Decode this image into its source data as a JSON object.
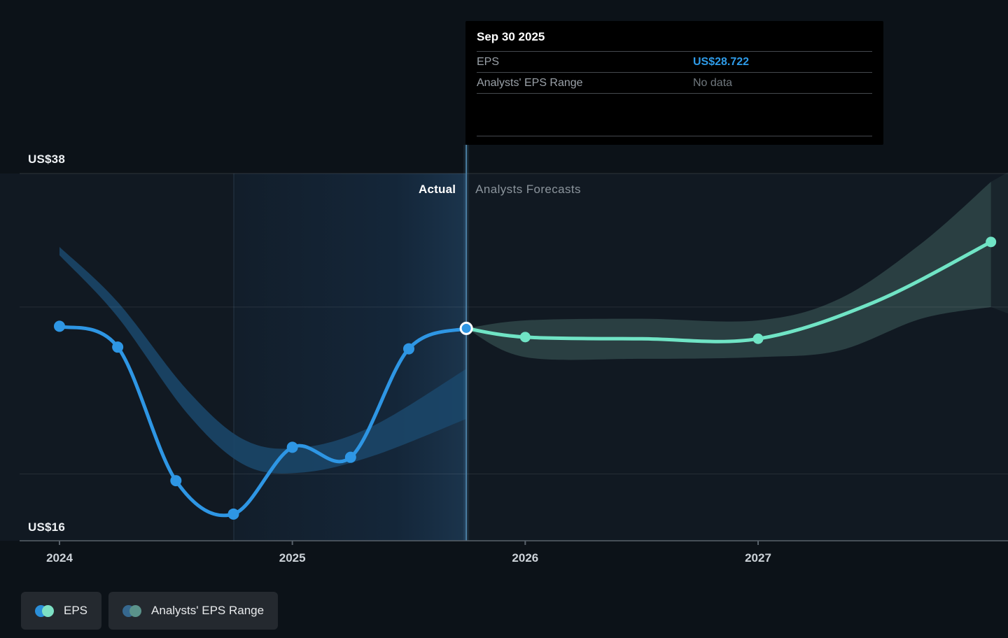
{
  "tooltip": {
    "title": "Sep 30 2025",
    "rows": [
      {
        "label": "EPS",
        "value": "US$28.722",
        "style": "accent"
      },
      {
        "label": "Analysts' EPS Range",
        "value": "No data",
        "style": "muted"
      }
    ]
  },
  "legend": [
    {
      "label": "EPS",
      "colors": [
        "#2b8fd9",
        "#7de0c4"
      ]
    },
    {
      "label": "Analysts' EPS Range",
      "colors": [
        "#36688f",
        "#5b938b"
      ]
    }
  ],
  "colors": {
    "eps_line": "#2e96e4",
    "forecast_line": "#70e4c5",
    "actual_band": "#1b4668",
    "forecast_band": "#41615f",
    "divider": "#4c80a4",
    "axis": "#59626b",
    "grid": "#ffffff"
  },
  "chart_data": {
    "type": "line",
    "currency_unit": "US$",
    "ylabel_top": "US$38",
    "ylabel_bottom": "US$16",
    "y_top_value": 38,
    "y_bottom_value": 16,
    "gridline_values": [
      38,
      30,
      20
    ],
    "x_ticks": [
      {
        "label": "2024",
        "t": 2024
      },
      {
        "label": "2025",
        "t": 2025
      },
      {
        "label": "2026",
        "t": 2026
      },
      {
        "label": "2027",
        "t": 2027
      }
    ],
    "phase_labels": {
      "actual": "Actual",
      "forecast": "Analysts Forecasts"
    },
    "divider_t": 2025.747,
    "highlight_window": {
      "from": 2024.747,
      "to": 2025.747
    },
    "highlight_point": {
      "t": 2025.747,
      "v": 28.722,
      "date": "Sep 30 2025"
    },
    "series": [
      {
        "name": "EPS",
        "role": "actual",
        "points": [
          {
            "t": 2024.0,
            "v": 28.85,
            "dot": true
          },
          {
            "t": 2024.25,
            "v": 27.6,
            "dot": true
          },
          {
            "t": 2024.5,
            "v": 19.6,
            "dot": true
          },
          {
            "t": 2024.747,
            "v": 17.6,
            "dot": true
          },
          {
            "t": 2025.0,
            "v": 21.6,
            "dot": true
          },
          {
            "t": 2025.25,
            "v": 21.0,
            "dot": true
          },
          {
            "t": 2025.5,
            "v": 27.5,
            "dot": true
          },
          {
            "t": 2025.747,
            "v": 28.722,
            "dot": false
          }
        ]
      },
      {
        "name": "EPS forecast",
        "role": "forecast",
        "points": [
          {
            "t": 2025.747,
            "v": 28.722,
            "dot": false
          },
          {
            "t": 2026.0,
            "v": 28.2,
            "dot": true
          },
          {
            "t": 2026.5,
            "v": 28.1,
            "dot": false
          },
          {
            "t": 2027.0,
            "v": 28.1,
            "dot": true
          },
          {
            "t": 2027.5,
            "v": 30.3,
            "dot": false
          },
          {
            "t": 2028.0,
            "v": 33.9,
            "dot": true
          }
        ]
      }
    ],
    "bands": [
      {
        "name": "Analysts' EPS Range (past)",
        "role": "actual",
        "points": [
          {
            "t": 2024.0,
            "hi": 33.6,
            "lo": 33.1
          },
          {
            "t": 2024.25,
            "hi": 30.3,
            "lo": 29.4
          },
          {
            "t": 2024.55,
            "hi": 25.0,
            "lo": 23.6
          },
          {
            "t": 2024.8,
            "hi": 22.0,
            "lo": 20.5
          },
          {
            "t": 2025.05,
            "hi": 21.6,
            "lo": 20.1
          },
          {
            "t": 2025.35,
            "hi": 22.9,
            "lo": 21.1
          },
          {
            "t": 2025.747,
            "hi": 26.3,
            "lo": 23.3
          }
        ]
      },
      {
        "name": "Analysts' EPS Range (forecast)",
        "role": "forecast",
        "points": [
          {
            "t": 2025.747,
            "hi": 28.722,
            "lo": 28.722
          },
          {
            "t": 2026.0,
            "hi": 29.2,
            "lo": 27.0
          },
          {
            "t": 2026.5,
            "hi": 29.3,
            "lo": 26.9
          },
          {
            "t": 2027.0,
            "hi": 29.2,
            "lo": 27.0
          },
          {
            "t": 2027.35,
            "hi": 30.5,
            "lo": 27.4
          },
          {
            "t": 2027.7,
            "hi": 33.8,
            "lo": 29.3
          },
          {
            "t": 2028.0,
            "hi": 37.5,
            "lo": 30.0
          }
        ]
      }
    ]
  }
}
